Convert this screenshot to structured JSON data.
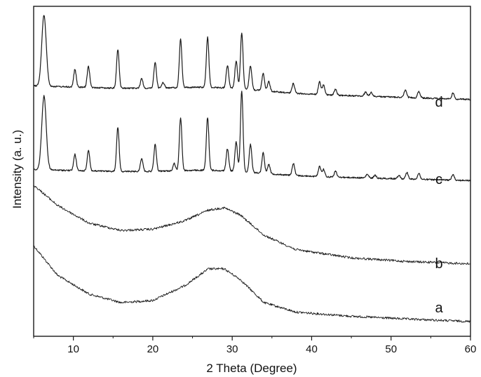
{
  "chart_data": {
    "type": "line",
    "title": "",
    "xlabel": "2 Theta (Degree)",
    "ylabel": "Intensity (a. u.)",
    "xlim": [
      5,
      60
    ],
    "x_ticks": [
      10,
      20,
      30,
      40,
      50,
      60
    ],
    "x_tick_labels": [
      "10",
      "20",
      "30",
      "40",
      "50",
      "60"
    ],
    "y_ticks_shown": false,
    "grid": false,
    "legend": "none",
    "line_color": "#1a1a1a",
    "series": [
      {
        "label": "a",
        "amorphous": true,
        "halo_center": 28.5,
        "curve": [
          [
            5,
            0.36
          ],
          [
            8,
            0.22
          ],
          [
            12,
            0.13
          ],
          [
            16,
            0.09
          ],
          [
            20,
            0.1
          ],
          [
            24,
            0.17
          ],
          [
            27,
            0.25
          ],
          [
            29,
            0.25
          ],
          [
            31,
            0.2
          ],
          [
            34,
            0.09
          ],
          [
            38,
            0.045
          ],
          [
            45,
            0.025
          ],
          [
            52,
            0.012
          ],
          [
            60,
            0.0
          ]
        ]
      },
      {
        "label": "b",
        "amorphous": true,
        "halo_center": 28.5,
        "curve": [
          [
            5,
            0.72
          ],
          [
            8,
            0.55
          ],
          [
            12,
            0.4
          ],
          [
            16,
            0.34
          ],
          [
            20,
            0.35
          ],
          [
            24,
            0.42
          ],
          [
            27,
            0.51
          ],
          [
            29,
            0.53
          ],
          [
            31,
            0.47
          ],
          [
            34,
            0.3
          ],
          [
            38,
            0.18
          ],
          [
            45,
            0.11
          ],
          [
            52,
            0.08
          ],
          [
            60,
            0.06
          ]
        ]
      },
      {
        "label": "c",
        "amorphous": false,
        "baseline_start": 0.3,
        "baseline_end": 0.15,
        "peaks": [
          [
            6.3,
            1.0
          ],
          [
            10.2,
            0.22
          ],
          [
            11.9,
            0.28
          ],
          [
            15.6,
            0.6
          ],
          [
            18.6,
            0.18
          ],
          [
            20.3,
            0.36
          ],
          [
            22.7,
            0.1
          ],
          [
            23.5,
            0.72
          ],
          [
            26.9,
            0.72
          ],
          [
            29.4,
            0.3
          ],
          [
            30.5,
            0.4
          ],
          [
            31.2,
            1.1
          ],
          [
            32.3,
            0.38
          ],
          [
            33.9,
            0.28
          ],
          [
            34.6,
            0.13
          ],
          [
            37.7,
            0.16
          ],
          [
            41.0,
            0.14
          ],
          [
            41.5,
            0.1
          ],
          [
            43.0,
            0.08
          ],
          [
            47.0,
            0.05
          ],
          [
            48.0,
            0.04
          ],
          [
            51.0,
            0.05
          ],
          [
            52.0,
            0.09
          ],
          [
            53.5,
            0.08
          ],
          [
            57.8,
            0.08
          ]
        ]
      },
      {
        "label": "d",
        "amorphous": false,
        "baseline_start": 0.32,
        "baseline_end": 0.15,
        "peaks": [
          [
            6.3,
            0.88
          ],
          [
            10.2,
            0.22
          ],
          [
            11.9,
            0.26
          ],
          [
            15.6,
            0.48
          ],
          [
            18.6,
            0.12
          ],
          [
            20.3,
            0.32
          ],
          [
            21.3,
            0.07
          ],
          [
            23.5,
            0.6
          ],
          [
            26.9,
            0.62
          ],
          [
            29.4,
            0.28
          ],
          [
            30.5,
            0.34
          ],
          [
            31.2,
            0.7
          ],
          [
            32.3,
            0.3
          ],
          [
            33.9,
            0.22
          ],
          [
            34.6,
            0.12
          ],
          [
            37.7,
            0.12
          ],
          [
            41.0,
            0.16
          ],
          [
            41.5,
            0.12
          ],
          [
            43.0,
            0.07
          ],
          [
            46.8,
            0.05
          ],
          [
            47.5,
            0.05
          ],
          [
            51.8,
            0.09
          ],
          [
            53.5,
            0.08
          ],
          [
            57.8,
            0.07
          ]
        ]
      }
    ]
  }
}
